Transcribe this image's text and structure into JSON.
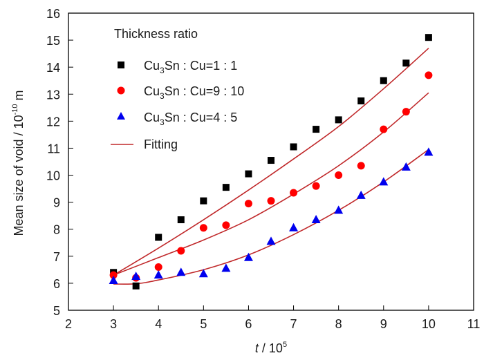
{
  "chart_data": {
    "type": "scatter",
    "title": "",
    "xlabel": "t / 10^5",
    "xlabel_parts": {
      "var": "t",
      "sep": " / 10",
      "exp": "5"
    },
    "ylabel": "Mean size of void / 10^-10 m",
    "ylabel_parts": {
      "main": "Mean size of void / 10",
      "exp": "-10",
      "unit": " m"
    },
    "xlim": [
      2,
      11
    ],
    "ylim": [
      5,
      16
    ],
    "xticks": [
      "2",
      "3",
      "4",
      "5",
      "6",
      "7",
      "8",
      "9",
      "10",
      "11"
    ],
    "yticks": [
      "5",
      "6",
      "7",
      "8",
      "9",
      "10",
      "11",
      "12",
      "13",
      "14",
      "15",
      "16"
    ],
    "grid": false,
    "legend": {
      "placement": "top-left",
      "title": "Thickness ratio",
      "entries": [
        {
          "prefix": "Cu",
          "sub": "3",
          "suffix": "Sn : Cu=1 : 1",
          "marker": "square",
          "color": "#000000"
        },
        {
          "prefix": "Cu",
          "sub": "3",
          "suffix": "Sn : Cu=9 : 10",
          "marker": "circle",
          "color": "#ff0000"
        },
        {
          "prefix": "Cu",
          "sub": "3",
          "suffix": "Sn : Cu=4 : 5",
          "marker": "triangle",
          "color": "#0000ee"
        },
        {
          "label": "Fitting",
          "marker": "line",
          "color": "#c0282a"
        }
      ]
    },
    "x": [
      3,
      3.5,
      4,
      4.5,
      5,
      5.5,
      6,
      6.5,
      7,
      7.5,
      8,
      8.5,
      9,
      9.5,
      10
    ],
    "series": [
      {
        "name": "Cu3Sn : Cu=1 : 1",
        "marker": "square",
        "color": "#000000",
        "values": [
          6.4,
          5.9,
          7.7,
          8.35,
          9.05,
          9.55,
          10.05,
          10.55,
          11.05,
          11.7,
          12.05,
          12.75,
          13.5,
          14.15,
          15.1
        ],
        "fit": {
          "x": [
            3,
            4,
            5,
            6,
            7,
            8,
            9,
            10
          ],
          "y": [
            6.3,
            7.3,
            8.35,
            9.45,
            10.6,
            11.8,
            13.2,
            14.7
          ]
        }
      },
      {
        "name": "Cu3Sn : Cu=9 : 10",
        "marker": "circle",
        "color": "#ff0000",
        "values": [
          6.3,
          6.2,
          6.6,
          7.2,
          8.05,
          8.15,
          8.95,
          9.05,
          9.35,
          9.6,
          10.0,
          10.35,
          11.7,
          12.35,
          13.7
        ],
        "fit": {
          "x": [
            3,
            4,
            5,
            6,
            7,
            8,
            9,
            10
          ],
          "y": [
            6.3,
            6.95,
            7.6,
            8.35,
            9.3,
            10.35,
            11.6,
            13.05
          ]
        }
      },
      {
        "name": "Cu3Sn : Cu=4 : 5",
        "marker": "triangle",
        "color": "#0000ee",
        "values": [
          6.1,
          6.25,
          6.3,
          6.4,
          6.35,
          6.55,
          6.95,
          7.55,
          8.05,
          8.35,
          8.7,
          9.25,
          9.75,
          10.3,
          10.85
        ],
        "fit": {
          "x": [
            3,
            3.5,
            4,
            5,
            6,
            7,
            8,
            9,
            10
          ],
          "y": [
            5.97,
            5.98,
            6.12,
            6.5,
            7.05,
            7.8,
            8.7,
            9.75,
            10.95
          ]
        }
      }
    ],
    "fit_color": "#c0282a"
  }
}
